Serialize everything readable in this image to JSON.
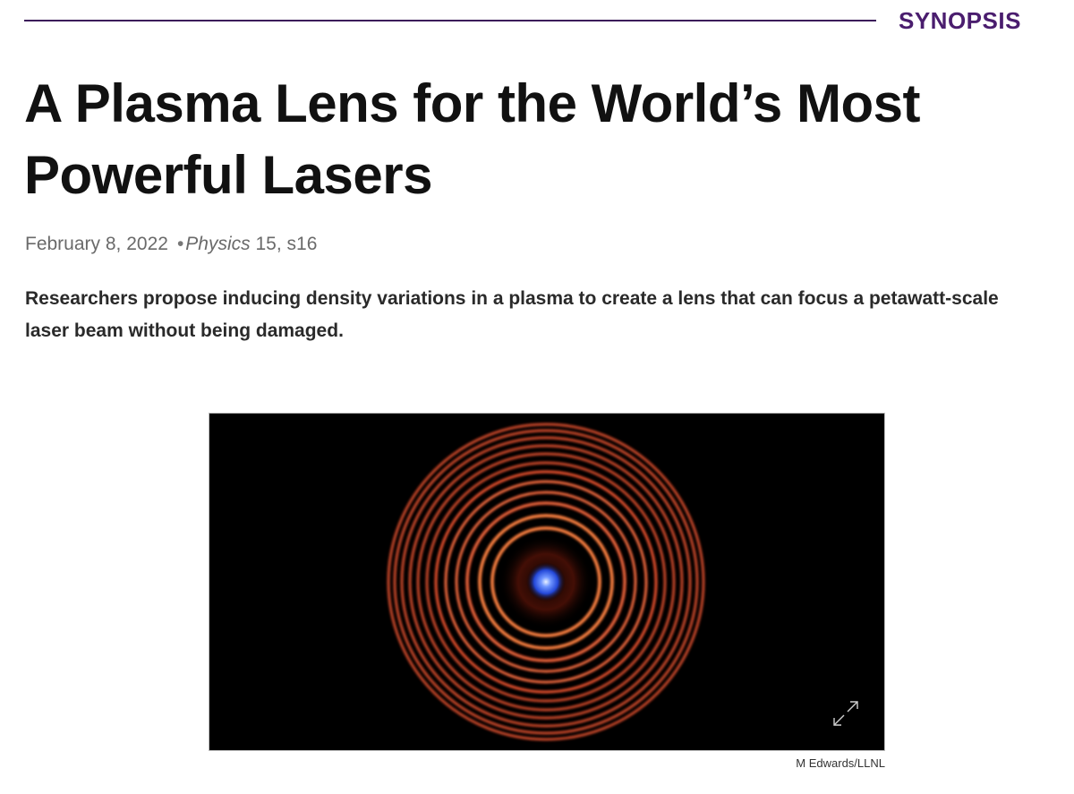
{
  "header": {
    "section_label": "SYNOPSIS",
    "accent_color": "#4a1d6e"
  },
  "article": {
    "title": "A Plasma Lens for the World’s Most Powerful Lasers",
    "date": "February 8, 2022",
    "separator": "•",
    "journal": "Physics",
    "citation": "15, s16",
    "summary": "Researchers propose inducing density variations in a plasma to create a lens that can focus a petawatt-scale laser beam without being damaged."
  },
  "figure": {
    "credit": "M Edwards/LLNL",
    "expand_icon": "expand-arrows-icon",
    "ring_color": "#d23a1e",
    "core_color": "#3a6bff"
  }
}
